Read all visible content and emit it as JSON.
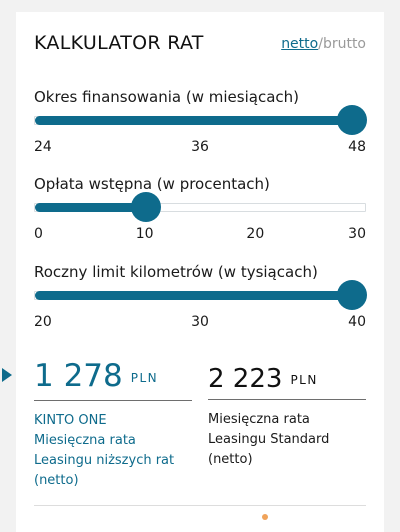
{
  "header": {
    "title": "KALKULATOR RAT",
    "toggle_active": "netto",
    "toggle_separator": "/",
    "toggle_inactive": "brutto"
  },
  "sliders": [
    {
      "label": "Okres finansowania (w miesiącach)",
      "ticks": [
        "24",
        "36",
        "48"
      ],
      "min": 24,
      "max": 48,
      "value": 48
    },
    {
      "label": "Opłata wstępna (w procentach)",
      "ticks": [
        "0",
        "10",
        "20",
        "30"
      ],
      "min": 0,
      "max": 30,
      "value": 10
    },
    {
      "label": "Roczny limit kilometrów (w tysiącach)",
      "ticks": [
        "20",
        "30",
        "40"
      ],
      "min": 20,
      "max": 40,
      "value": 40
    }
  ],
  "results": [
    {
      "amount": "1 278",
      "currency": "PLN",
      "description": "KINTO ONE\nMiesięczna rata\nLeasingu niższych rat\n(netto)"
    },
    {
      "amount": "2 223",
      "currency": "PLN",
      "description": "Miesięczna rata\nLeasingu Standard\n(netto)"
    }
  ],
  "colors": {
    "accent": "#0e6b8c",
    "text": "#1a1a1a",
    "muted": "#9a9a9a"
  }
}
